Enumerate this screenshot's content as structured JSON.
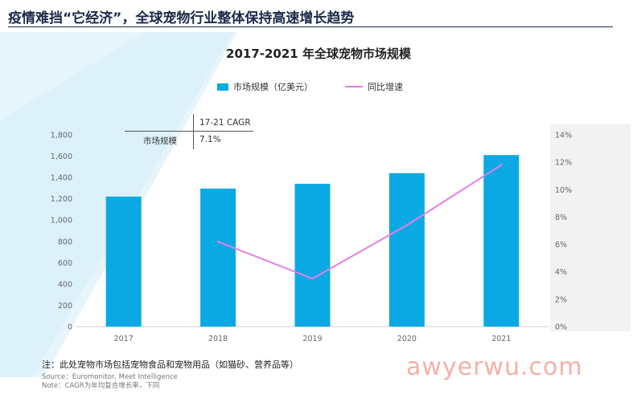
{
  "slide_title": "疫情难挡“它经济”，全球宠物行业整体保持高速增长趋势",
  "chart_data": {
    "type": "bar",
    "title": "2017-2021 年全球宠物市场规模",
    "categories": [
      "2017",
      "2018",
      "2019",
      "2020",
      "2021"
    ],
    "series": [
      {
        "name": "市场规模（亿美元）",
        "type": "bar",
        "axis": "left",
        "color": "#0aa9e4",
        "values": [
          1220,
          1295,
          1340,
          1440,
          1610
        ]
      },
      {
        "name": "同比增速",
        "type": "line",
        "axis": "right",
        "color": "#e77ee4",
        "values": [
          null,
          6.2,
          3.5,
          7.4,
          11.8
        ]
      }
    ],
    "ylim_left": [
      0,
      1800
    ],
    "yticks_left": [
      "0",
      "200",
      "400",
      "600",
      "800",
      "1,000",
      "1,200",
      "1,400",
      "1,600",
      "1,800"
    ],
    "ylim_right": [
      0,
      14
    ],
    "yticks_right": [
      "0%",
      "2%",
      "4%",
      "6%",
      "8%",
      "10%",
      "12%",
      "14%"
    ],
    "legend_position": "top-center",
    "grid": false
  },
  "cagr_table": {
    "header": "17-21 CAGR",
    "row_label": "市场规模",
    "row_value": "7.1%"
  },
  "footer": {
    "note": "注：此处宠物市场包括宠物食品和宠物用品（如猫砂、营养品等）",
    "source": "Source：Euromonitor, Meet Intelligence",
    "source_note": "Note：CAGR为年均复合增长率，下同"
  },
  "watermark": "awyerwu.com",
  "colors": {
    "bar": "#0aa9e4",
    "line": "#e77ee4",
    "title": "#1b2a4a",
    "accent_bg": "#dff2fb"
  }
}
